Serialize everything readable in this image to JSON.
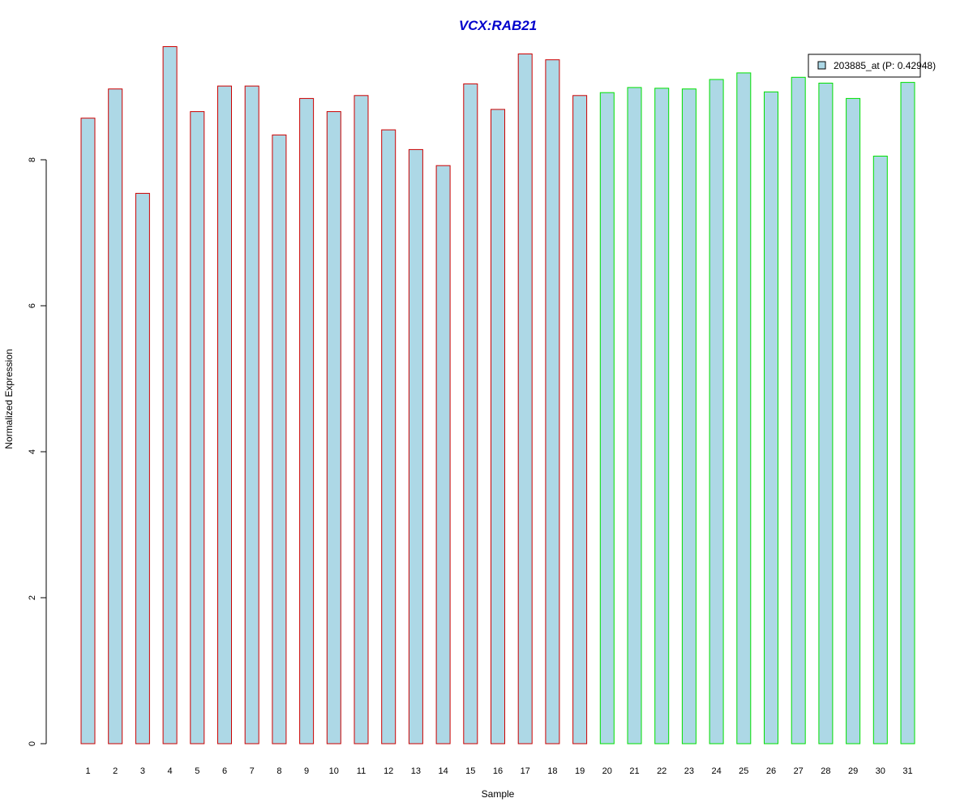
{
  "chart_data": {
    "type": "bar",
    "title": "VCX:RAB21",
    "xlabel": "Sample",
    "ylabel": "Normalized Expression",
    "ylim": [
      0,
      10
    ],
    "yticks": [
      0,
      2,
      4,
      6,
      8
    ],
    "categories": [
      "1",
      "2",
      "3",
      "4",
      "5",
      "6",
      "7",
      "8",
      "9",
      "10",
      "11",
      "12",
      "13",
      "14",
      "15",
      "16",
      "17",
      "18",
      "19",
      "20",
      "21",
      "22",
      "23",
      "24",
      "25",
      "26",
      "27",
      "28",
      "29",
      "30",
      "31"
    ],
    "series": [
      {
        "name": "203885_at (P: 0.42948)",
        "values": [
          8.57,
          8.97,
          7.54,
          9.55,
          8.66,
          9.01,
          9.01,
          8.34,
          8.84,
          8.66,
          8.88,
          8.41,
          8.14,
          7.92,
          9.04,
          8.69,
          9.45,
          9.37,
          8.88,
          8.92,
          8.99,
          8.98,
          8.97,
          9.1,
          9.19,
          8.93,
          9.13,
          9.05,
          8.84,
          8.05,
          9.06
        ]
      }
    ],
    "group_1_count": 19,
    "legend_position": "top-right",
    "grid": false
  },
  "colors": {
    "title": "#0000cc",
    "bar_fill": "#add8e6",
    "group_1_border": "#cc0000",
    "group_2_border": "#00e000",
    "axis": "#000000"
  }
}
